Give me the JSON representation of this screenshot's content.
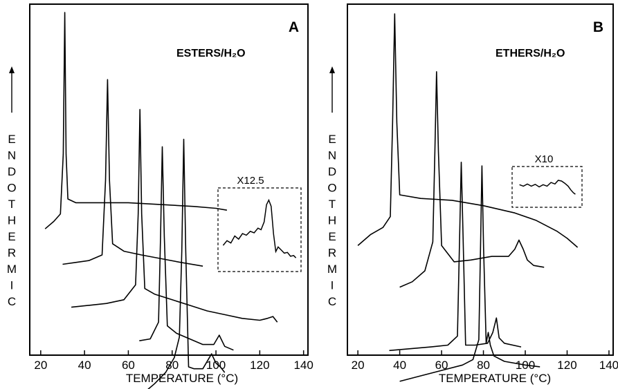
{
  "chart_data": [
    {
      "type": "line",
      "panel_label": "A",
      "sample_label": "ESTERS/H₂O",
      "xlabel": "TEMPERATURE (°C)",
      "ylabel": "ENDOTHERMIC",
      "xlim": [
        15,
        142
      ],
      "xticks": [
        20,
        40,
        60,
        80,
        100,
        120,
        140
      ],
      "inset_label": "X12.5",
      "series": [
        {
          "x": [
            22,
            26,
            29,
            30.3,
            31,
            31.6,
            32.4,
            36,
            45,
            60,
            75,
            90,
            100,
            105
          ],
          "y": [
            0.42,
            0.44,
            0.46,
            0.62,
            1.0,
            0.62,
            0.5,
            0.49,
            0.49,
            0.49,
            0.485,
            0.48,
            0.475,
            0.47
          ]
        },
        {
          "x": [
            30,
            36,
            42,
            48,
            49.6,
            50.5,
            51.4,
            52.8,
            58,
            66,
            75,
            84,
            94
          ],
          "y": [
            0.325,
            0.33,
            0.335,
            0.35,
            0.55,
            0.82,
            0.55,
            0.38,
            0.36,
            0.35,
            0.34,
            0.33,
            0.32
          ]
        },
        {
          "x": [
            34,
            42,
            50,
            58,
            63.3,
            64.5,
            65.3,
            66.1,
            67.5,
            72,
            80,
            88,
            96,
            104,
            112,
            120,
            123.5,
            126,
            128
          ],
          "y": [
            0.21,
            0.215,
            0.22,
            0.23,
            0.27,
            0.46,
            0.74,
            0.46,
            0.26,
            0.245,
            0.23,
            0.215,
            0.2,
            0.19,
            0.18,
            0.175,
            0.18,
            0.185,
            0.17
          ]
        },
        {
          "x": [
            65,
            70,
            73.8,
            74.7,
            75.5,
            76.4,
            77.8,
            82,
            88,
            94,
            99,
            101.5,
            104,
            108
          ],
          "y": [
            0.12,
            0.125,
            0.17,
            0.4,
            0.64,
            0.4,
            0.16,
            0.14,
            0.125,
            0.11,
            0.11,
            0.135,
            0.105,
            0.095
          ]
        },
        {
          "x": [
            61,
            66,
            72,
            77,
            81,
            83.3,
            84.4,
            85.3,
            86.2,
            87.5,
            90,
            94,
            96.5,
            98,
            100,
            102,
            104
          ],
          "y": [
            -0.055,
            -0.025,
            0.005,
            0.035,
            0.075,
            0.13,
            0.36,
            0.66,
            0.36,
            0.05,
            0.045,
            0.045,
            0.07,
            0.085,
            0.06,
            0.05,
            0.035
          ]
        }
      ],
      "inset_curve": {
        "x": [
          0.03,
          0.08,
          0.13,
          0.18,
          0.23,
          0.28,
          0.33,
          0.38,
          0.43,
          0.48,
          0.52,
          0.56,
          0.59,
          0.62,
          0.65,
          0.68,
          0.71,
          0.74,
          0.78,
          0.82,
          0.86,
          0.9,
          0.94,
          0.97
        ],
        "y": [
          0.3,
          0.36,
          0.33,
          0.42,
          0.38,
          0.45,
          0.43,
          0.48,
          0.46,
          0.52,
          0.5,
          0.6,
          0.82,
          0.88,
          0.8,
          0.45,
          0.22,
          0.28,
          0.24,
          0.2,
          0.21,
          0.16,
          0.17,
          0.14
        ]
      }
    },
    {
      "type": "line",
      "panel_label": "B",
      "sample_label": "ETHERS/H₂O",
      "xlabel": "TEMPERATURE (°C)",
      "ylabel": "ENDOTHERMIC",
      "xlim": [
        15,
        142
      ],
      "xticks": [
        20,
        40,
        60,
        80,
        100,
        120,
        140
      ],
      "inset_label": "X10",
      "series": [
        {
          "x": [
            20,
            26,
            32,
            35.5,
            36.6,
            37.6,
            38.6,
            40,
            50,
            65,
            80,
            95,
            105,
            115,
            120,
            125
          ],
          "y": [
            0.36,
            0.39,
            0.41,
            0.44,
            0.7,
            1.0,
            0.7,
            0.5,
            0.49,
            0.485,
            0.47,
            0.45,
            0.43,
            0.4,
            0.38,
            0.355
          ]
        },
        {
          "x": [
            40,
            46,
            52,
            55.8,
            56.8,
            57.6,
            58.5,
            60,
            66,
            74,
            84,
            92,
            95,
            97,
            99,
            101,
            104,
            109
          ],
          "y": [
            0.245,
            0.26,
            0.29,
            0.37,
            0.62,
            0.84,
            0.62,
            0.36,
            0.315,
            0.32,
            0.33,
            0.33,
            0.35,
            0.375,
            0.35,
            0.32,
            0.305,
            0.3
          ]
        },
        {
          "x": [
            35,
            45,
            55,
            63,
            67.6,
            68.6,
            69.4,
            70.3,
            71.5,
            76,
            82,
            84.5,
            86.2,
            87.5,
            90,
            98
          ],
          "y": [
            0.07,
            0.075,
            0.08,
            0.085,
            0.11,
            0.38,
            0.59,
            0.38,
            0.085,
            0.085,
            0.09,
            0.12,
            0.16,
            0.105,
            0.09,
            0.08
          ]
        },
        {
          "x": [
            40,
            50,
            60,
            70,
            75,
            77.8,
            78.6,
            79.3,
            80.1,
            81.3,
            82.3,
            83.3,
            85,
            90,
            100,
            107
          ],
          "y": [
            -0.015,
            0.0,
            0.015,
            0.03,
            0.045,
            0.1,
            0.35,
            0.58,
            0.35,
            0.09,
            0.12,
            0.085,
            0.055,
            0.04,
            0.03,
            0.025
          ]
        }
      ],
      "inset_curve": {
        "x": [
          0.08,
          0.14,
          0.2,
          0.26,
          0.32,
          0.38,
          0.44,
          0.5,
          0.56,
          0.62,
          0.67,
          0.72,
          0.77,
          0.82,
          0.86,
          0.9,
          0.93
        ],
        "y": [
          0.56,
          0.52,
          0.58,
          0.52,
          0.57,
          0.5,
          0.56,
          0.52,
          0.62,
          0.58,
          0.68,
          0.66,
          0.6,
          0.52,
          0.42,
          0.34,
          0.3
        ]
      }
    }
  ]
}
